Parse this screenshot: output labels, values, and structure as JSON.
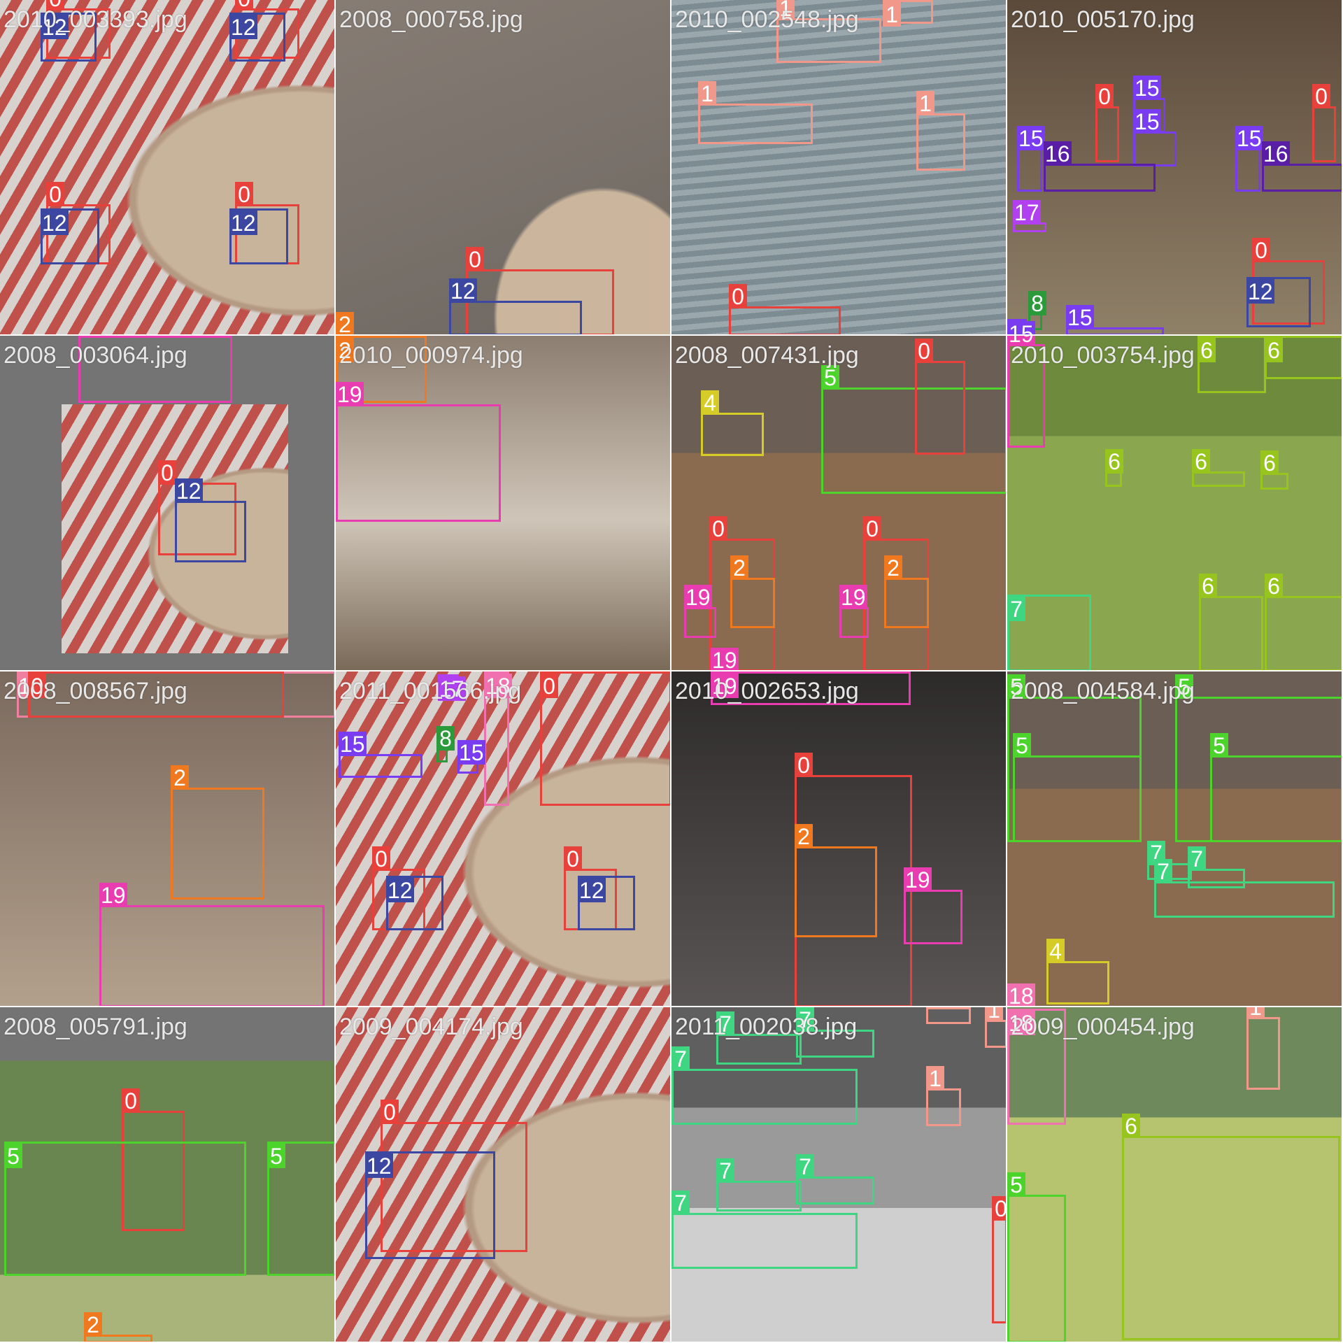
{
  "classes": {
    "0": {
      "label": "0",
      "color": "#e8413c"
    },
    "1": {
      "label": "1",
      "color": "#f2988a"
    },
    "2": {
      "label": "2",
      "color": "#f0781e"
    },
    "4": {
      "label": "4",
      "color": "#d6cc28"
    },
    "5": {
      "label": "5",
      "color": "#4cd42c"
    },
    "6": {
      "label": "6",
      "color": "#98c41e"
    },
    "7": {
      "label": "7",
      "color": "#3ed680"
    },
    "8": {
      "label": "8",
      "color": "#2a9a3a"
    },
    "10": {
      "label": "10",
      "color": "#f080a0"
    },
    "12": {
      "label": "12",
      "color": "#3b47a0"
    },
    "15": {
      "label": "15",
      "color": "#7a3cf0"
    },
    "16": {
      "label": "16",
      "color": "#5a1ea6"
    },
    "17": {
      "label": "17",
      "color": "#b040f0"
    },
    "18": {
      "label": "18",
      "color": "#f070b0"
    },
    "19": {
      "label": "19",
      "color": "#e83cb0"
    }
  },
  "tiles": [
    {
      "caption": "2010_003393.jpg"
    },
    {
      "caption": "2008_000758.jpg"
    },
    {
      "caption": "2010_002548.jpg"
    },
    {
      "caption": "2010_005170.jpg"
    },
    {
      "caption": "2008_003064.jpg"
    },
    {
      "caption": "2010_000974.jpg"
    },
    {
      "caption": "2008_007431.jpg"
    },
    {
      "caption": "2010_003754.jpg"
    },
    {
      "caption": "2008_008567.jpg"
    },
    {
      "caption": "2011_001566.jpg"
    },
    {
      "caption": "2010_002653.jpg"
    },
    {
      "caption": "2008_004584.jpg"
    },
    {
      "caption": "2008_005791.jpg"
    },
    {
      "caption": "2009_004174.jpg"
    },
    {
      "caption": "2011_002038.jpg"
    },
    {
      "caption": "2009_000454.jpg"
    }
  ]
}
